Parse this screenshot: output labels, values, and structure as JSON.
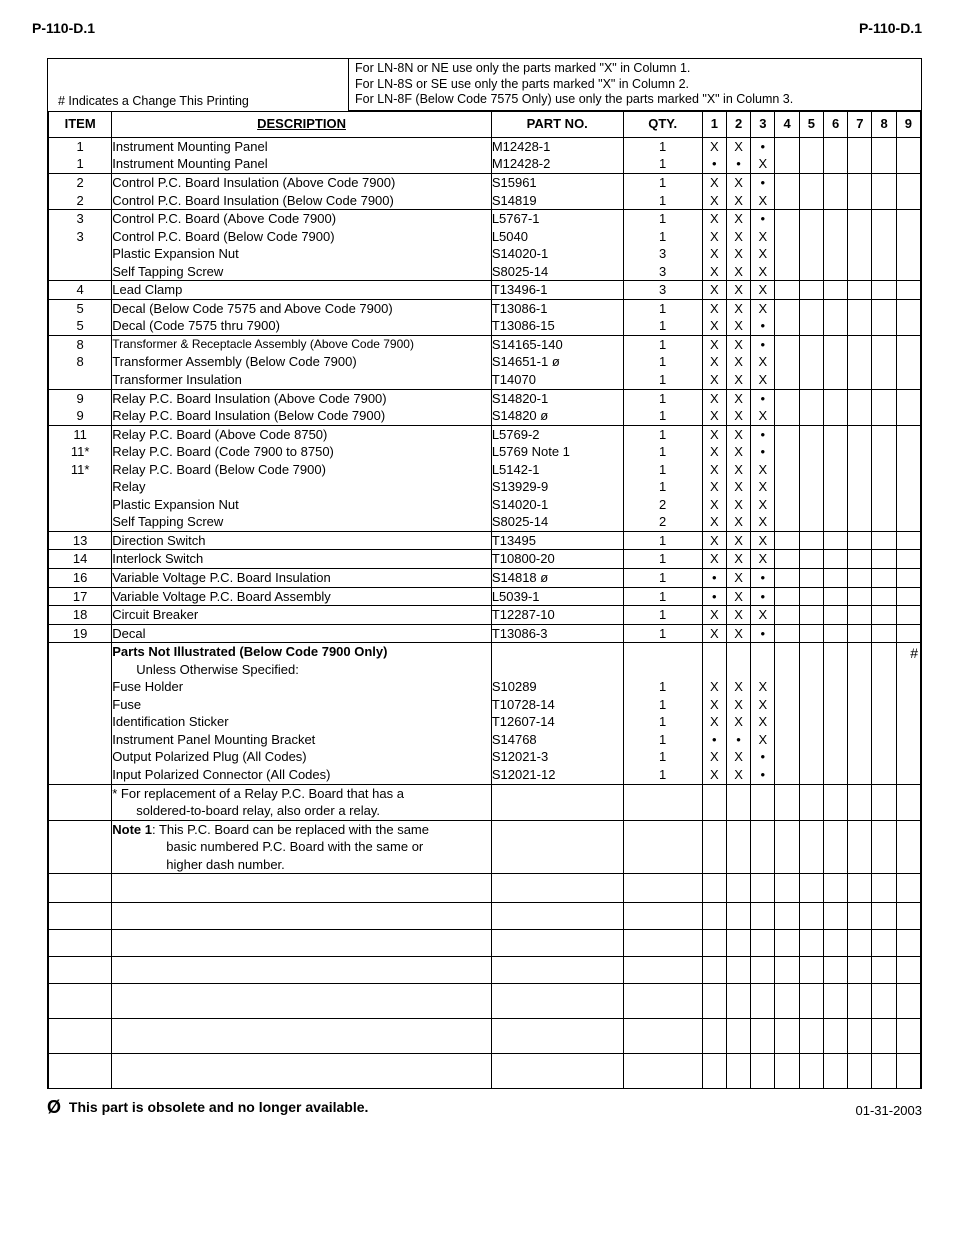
{
  "doc_id": "P-110-D.1",
  "note_lines": [
    "For LN-8N or NE use only the parts marked \"X\" in Column 1.",
    "For LN-8S or SE use only the parts marked \"X\" in Column 2.",
    "For LN-8F (Below Code 7575 Only) use only the parts marked \"X\" in Column 3."
  ],
  "change_note": "# Indicates a Change This Printing",
  "headers": {
    "item": "ITEM",
    "desc": "DESCRIPTION",
    "part": "PART NO.",
    "qty": "QTY.",
    "cols": [
      "1",
      "2",
      "3",
      "4",
      "5",
      "6",
      "7",
      "8",
      "9"
    ]
  },
  "rows": [
    {
      "sep": false,
      "item": "",
      "desc": "",
      "part": "",
      "qty": "",
      "m": [
        "",
        "",
        "",
        "",
        "",
        "",
        "",
        "",
        ""
      ]
    },
    {
      "sep": false,
      "item": "1",
      "desc": "Instrument Mounting Panel",
      "part": "M12428-1",
      "qty": "1",
      "m": [
        "X",
        "X",
        "•",
        "",
        "",
        "",
        "",
        "",
        ""
      ]
    },
    {
      "sep": false,
      "item": "1",
      "desc": "Instrument Mounting Panel",
      "part": "M12428-2",
      "qty": "1",
      "m": [
        "•",
        "•",
        "X",
        "",
        "",
        "",
        "",
        "",
        ""
      ]
    },
    {
      "sep": true,
      "item": "2",
      "desc": "Control P.C. Board Insulation (Above Code 7900)",
      "part": "S15961",
      "qty": "1",
      "m": [
        "X",
        "X",
        "•",
        "",
        "",
        "",
        "",
        "",
        ""
      ]
    },
    {
      "sep": false,
      "item": "2",
      "desc": "Control P.C. Board Insulation (Below Code 7900)",
      "part": "S14819",
      "qty": "1",
      "m": [
        "X",
        "X",
        "X",
        "",
        "",
        "",
        "",
        "",
        ""
      ]
    },
    {
      "sep": true,
      "item": "3",
      "desc": "Control P.C. Board (Above Code 7900)",
      "part": "L5767-1",
      "qty": "1",
      "m": [
        "X",
        "X",
        "•",
        "",
        "",
        "",
        "",
        "",
        ""
      ]
    },
    {
      "sep": false,
      "item": "3",
      "desc": "Control P.C. Board (Below Code 7900)",
      "part": "L5040",
      "qty": "1",
      "m": [
        "X",
        "X",
        "X",
        "",
        "",
        "",
        "",
        "",
        ""
      ]
    },
    {
      "sep": false,
      "item": "",
      "desc": "Plastic Expansion Nut",
      "part": "S14020-1",
      "qty": "3",
      "m": [
        "X",
        "X",
        "X",
        "",
        "",
        "",
        "",
        "",
        ""
      ]
    },
    {
      "sep": false,
      "item": "",
      "desc": "Self Tapping Screw",
      "part": "S8025-14",
      "qty": "3",
      "m": [
        "X",
        "X",
        "X",
        "",
        "",
        "",
        "",
        "",
        ""
      ]
    },
    {
      "sep": true,
      "item": "4",
      "desc": "Lead Clamp",
      "part": "T13496-1",
      "qty": "3",
      "m": [
        "X",
        "X",
        "X",
        "",
        "",
        "",
        "",
        "",
        ""
      ]
    },
    {
      "sep": true,
      "item": "5",
      "desc": "Decal (Below Code 7575 and Above Code 7900)",
      "part": "T13086-1",
      "qty": "1",
      "m": [
        "X",
        "X",
        "X",
        "",
        "",
        "",
        "",
        "",
        ""
      ]
    },
    {
      "sep": false,
      "item": "5",
      "desc": "Decal (Code 7575 thru 7900)",
      "part": "T13086-15",
      "qty": "1",
      "m": [
        "X",
        "X",
        "•",
        "",
        "",
        "",
        "",
        "",
        ""
      ]
    },
    {
      "sep": true,
      "item": "8",
      "desc": "Transformer & Receptacle Assembly (Above Code 7900)",
      "part": "S14165-140",
      "qty": "1",
      "m": [
        "X",
        "X",
        "•",
        "",
        "",
        "",
        "",
        "",
        ""
      ],
      "small": true
    },
    {
      "sep": false,
      "item": "8",
      "desc": "Transformer Assembly (Below Code 7900)",
      "part": "S14651-1 ø",
      "qty": "1",
      "m": [
        "X",
        "X",
        "X",
        "",
        "",
        "",
        "",
        "",
        ""
      ]
    },
    {
      "sep": false,
      "item": "",
      "desc": "Transformer Insulation",
      "part": "T14070",
      "qty": "1",
      "m": [
        "X",
        "X",
        "X",
        "",
        "",
        "",
        "",
        "",
        ""
      ]
    },
    {
      "sep": true,
      "item": "9",
      "desc": "Relay P.C. Board Insulation (Above Code 7900)",
      "part": "S14820-1",
      "qty": "1",
      "m": [
        "X",
        "X",
        "•",
        "",
        "",
        "",
        "",
        "",
        ""
      ]
    },
    {
      "sep": false,
      "item": "9",
      "desc": "Relay P.C. Board Insulation (Below Code 7900)",
      "part": "S14820  ø",
      "qty": "1",
      "m": [
        "X",
        "X",
        "X",
        "",
        "",
        "",
        "",
        "",
        ""
      ]
    },
    {
      "sep": true,
      "item": "11",
      "desc": "Relay P.C. Board (Above Code 8750)",
      "part": "L5769-2",
      "qty": "1",
      "m": [
        "X",
        "X",
        "•",
        "",
        "",
        "",
        "",
        "",
        ""
      ]
    },
    {
      "sep": false,
      "item": "11*",
      "desc": "Relay P.C. Board (Code 7900 to 8750)",
      "part": "L5769 Note 1",
      "qty": "1",
      "m": [
        "X",
        "X",
        "•",
        "",
        "",
        "",
        "",
        "",
        ""
      ]
    },
    {
      "sep": false,
      "item": "11*",
      "desc": "Relay P.C. Board (Below Code 7900)",
      "part": "L5142-1",
      "qty": "1",
      "m": [
        "X",
        "X",
        "X",
        "",
        "",
        "",
        "",
        "",
        ""
      ]
    },
    {
      "sep": false,
      "item": "",
      "desc": "Relay",
      "part": "S13929-9",
      "qty": "1",
      "m": [
        "X",
        "X",
        "X",
        "",
        "",
        "",
        "",
        "",
        ""
      ]
    },
    {
      "sep": false,
      "item": "",
      "desc": "Plastic Expansion Nut",
      "part": "S14020-1",
      "qty": "2",
      "m": [
        "X",
        "X",
        "X",
        "",
        "",
        "",
        "",
        "",
        ""
      ]
    },
    {
      "sep": false,
      "item": "",
      "desc": "Self Tapping Screw",
      "part": "S8025-14",
      "qty": "2",
      "m": [
        "X",
        "X",
        "X",
        "",
        "",
        "",
        "",
        "",
        ""
      ]
    },
    {
      "sep": true,
      "item": "13",
      "desc": "Direction Switch",
      "part": "T13495",
      "qty": "1",
      "m": [
        "X",
        "X",
        "X",
        "",
        "",
        "",
        "",
        "",
        ""
      ]
    },
    {
      "sep": true,
      "item": "14",
      "desc": "Interlock Switch",
      "part": "T10800-20",
      "qty": "1",
      "m": [
        "X",
        "X",
        "X",
        "",
        "",
        "",
        "",
        "",
        ""
      ]
    },
    {
      "sep": true,
      "item": "16",
      "desc": "Variable Voltage P.C. Board Insulation",
      "part": "S14818  ø",
      "qty": "1",
      "m": [
        "•",
        "X",
        "•",
        "",
        "",
        "",
        "",
        "",
        ""
      ]
    },
    {
      "sep": true,
      "item": "17",
      "desc": "Variable Voltage P.C. Board Assembly",
      "part": "L5039-1",
      "qty": "1",
      "m": [
        "•",
        "X",
        "•",
        "",
        "",
        "",
        "",
        "",
        ""
      ]
    },
    {
      "sep": true,
      "item": "18",
      "desc": "Circuit Breaker",
      "part": "T12287-10",
      "qty": "1",
      "m": [
        "X",
        "X",
        "X",
        "",
        "",
        "",
        "",
        "",
        ""
      ]
    },
    {
      "sep": true,
      "item": "19",
      "desc": "Decal",
      "part": "T13086-3",
      "qty": "1",
      "m": [
        "X",
        "X",
        "•",
        "",
        "",
        "",
        "",
        "",
        ""
      ]
    }
  ],
  "extra_rows": [
    {
      "sep": true,
      "desc_bold": "Parts Not Illustrated (Below Code 7900 Only)"
    },
    {
      "desc_indent1": "Unless Otherwise Specified:"
    },
    {
      "desc": "Fuse Holder",
      "part": "S10289",
      "qty": "1",
      "m": [
        "X",
        "X",
        "X",
        "",
        "",
        "",
        "",
        "",
        ""
      ]
    },
    {
      "desc": "Fuse",
      "part": "T10728-14",
      "qty": "1",
      "m": [
        "X",
        "X",
        "X",
        "",
        "",
        "",
        "",
        "",
        ""
      ]
    },
    {
      "desc": "Identification Sticker",
      "part": "T12607-14",
      "qty": "1",
      "m": [
        "X",
        "X",
        "X",
        "",
        "",
        "",
        "",
        "",
        ""
      ]
    },
    {
      "desc": "Instrument Panel Mounting Bracket",
      "part": "S14768",
      "qty": "1",
      "m": [
        "•",
        "•",
        "X",
        "",
        "",
        "",
        "",
        "",
        ""
      ]
    },
    {
      "desc": "Output Polarized Plug (All Codes)",
      "part": "S12021-3",
      "qty": "1",
      "m": [
        "X",
        "X",
        "•",
        "",
        "",
        "",
        "",
        "",
        ""
      ]
    },
    {
      "desc": "Input Polarized Connector (All Codes)",
      "part": "S12021-12",
      "qty": "1",
      "m": [
        "X",
        "X",
        "•",
        "",
        "",
        "",
        "",
        "",
        ""
      ]
    },
    {
      "sep": true,
      "desc": "* For replacement of a Relay P.C. Board that has a"
    },
    {
      "desc_indent1": "soldered-to-board relay, also order a relay."
    },
    {
      "sep": true,
      "desc_html": "<b>Note 1</b>: This P.C. Board can be replaced with the same"
    },
    {
      "desc_indent2": "basic numbered P.C. Board with the same or"
    },
    {
      "desc_indent2": "higher dash number."
    }
  ],
  "footer": {
    "obsolete_sym": "Ø",
    "obsolete_text": "This part is obsolete and no longer available.",
    "date": "01-31-2003"
  },
  "side_hash": "#"
}
